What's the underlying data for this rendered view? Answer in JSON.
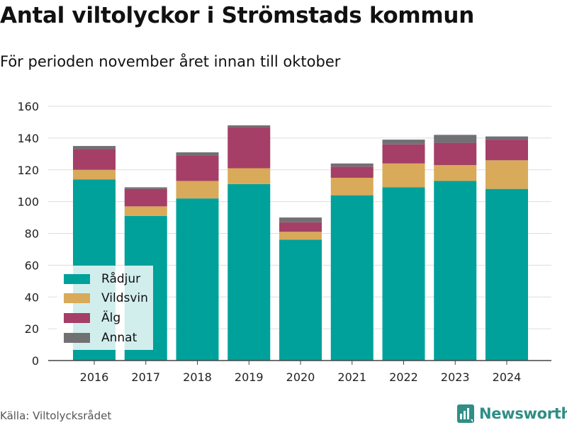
{
  "title": "Antal viltolyckor i Strömstads kommun",
  "subtitle": "För perioden november året innan till oktober",
  "source": "Källa: Viltolycksrådet",
  "brand": {
    "name": "Newsworthy",
    "logo_icon": "bar-chart-logo-icon"
  },
  "colors": {
    "radjur": "#00a19a",
    "vildsvin": "#d9aa59",
    "alg": "#a53f67",
    "annat": "#717073",
    "grid": "#dddddd",
    "axis": "#444444",
    "brand": "#2f8e86"
  },
  "chart_data": {
    "type": "bar",
    "stacked": true,
    "categories": [
      "2016",
      "2017",
      "2018",
      "2019",
      "2020",
      "2021",
      "2022",
      "2023",
      "2024"
    ],
    "series": [
      {
        "name": "Rådjur",
        "values": [
          114,
          91,
          102,
          111,
          76,
          104,
          109,
          113,
          108
        ]
      },
      {
        "name": "Vildsvin",
        "values": [
          6,
          6,
          11,
          10,
          5,
          11,
          15,
          10,
          18
        ]
      },
      {
        "name": "Älg",
        "values": [
          13,
          11,
          16,
          26,
          6,
          7,
          12,
          14,
          13
        ]
      },
      {
        "name": "Annat",
        "values": [
          2,
          1,
          2,
          1,
          3,
          2,
          3,
          5,
          2
        ]
      }
    ],
    "ylim": [
      0,
      160
    ],
    "yticks": [
      0,
      20,
      40,
      60,
      80,
      100,
      120,
      140,
      160
    ],
    "grid": true,
    "legend_position": "bottom-left"
  }
}
